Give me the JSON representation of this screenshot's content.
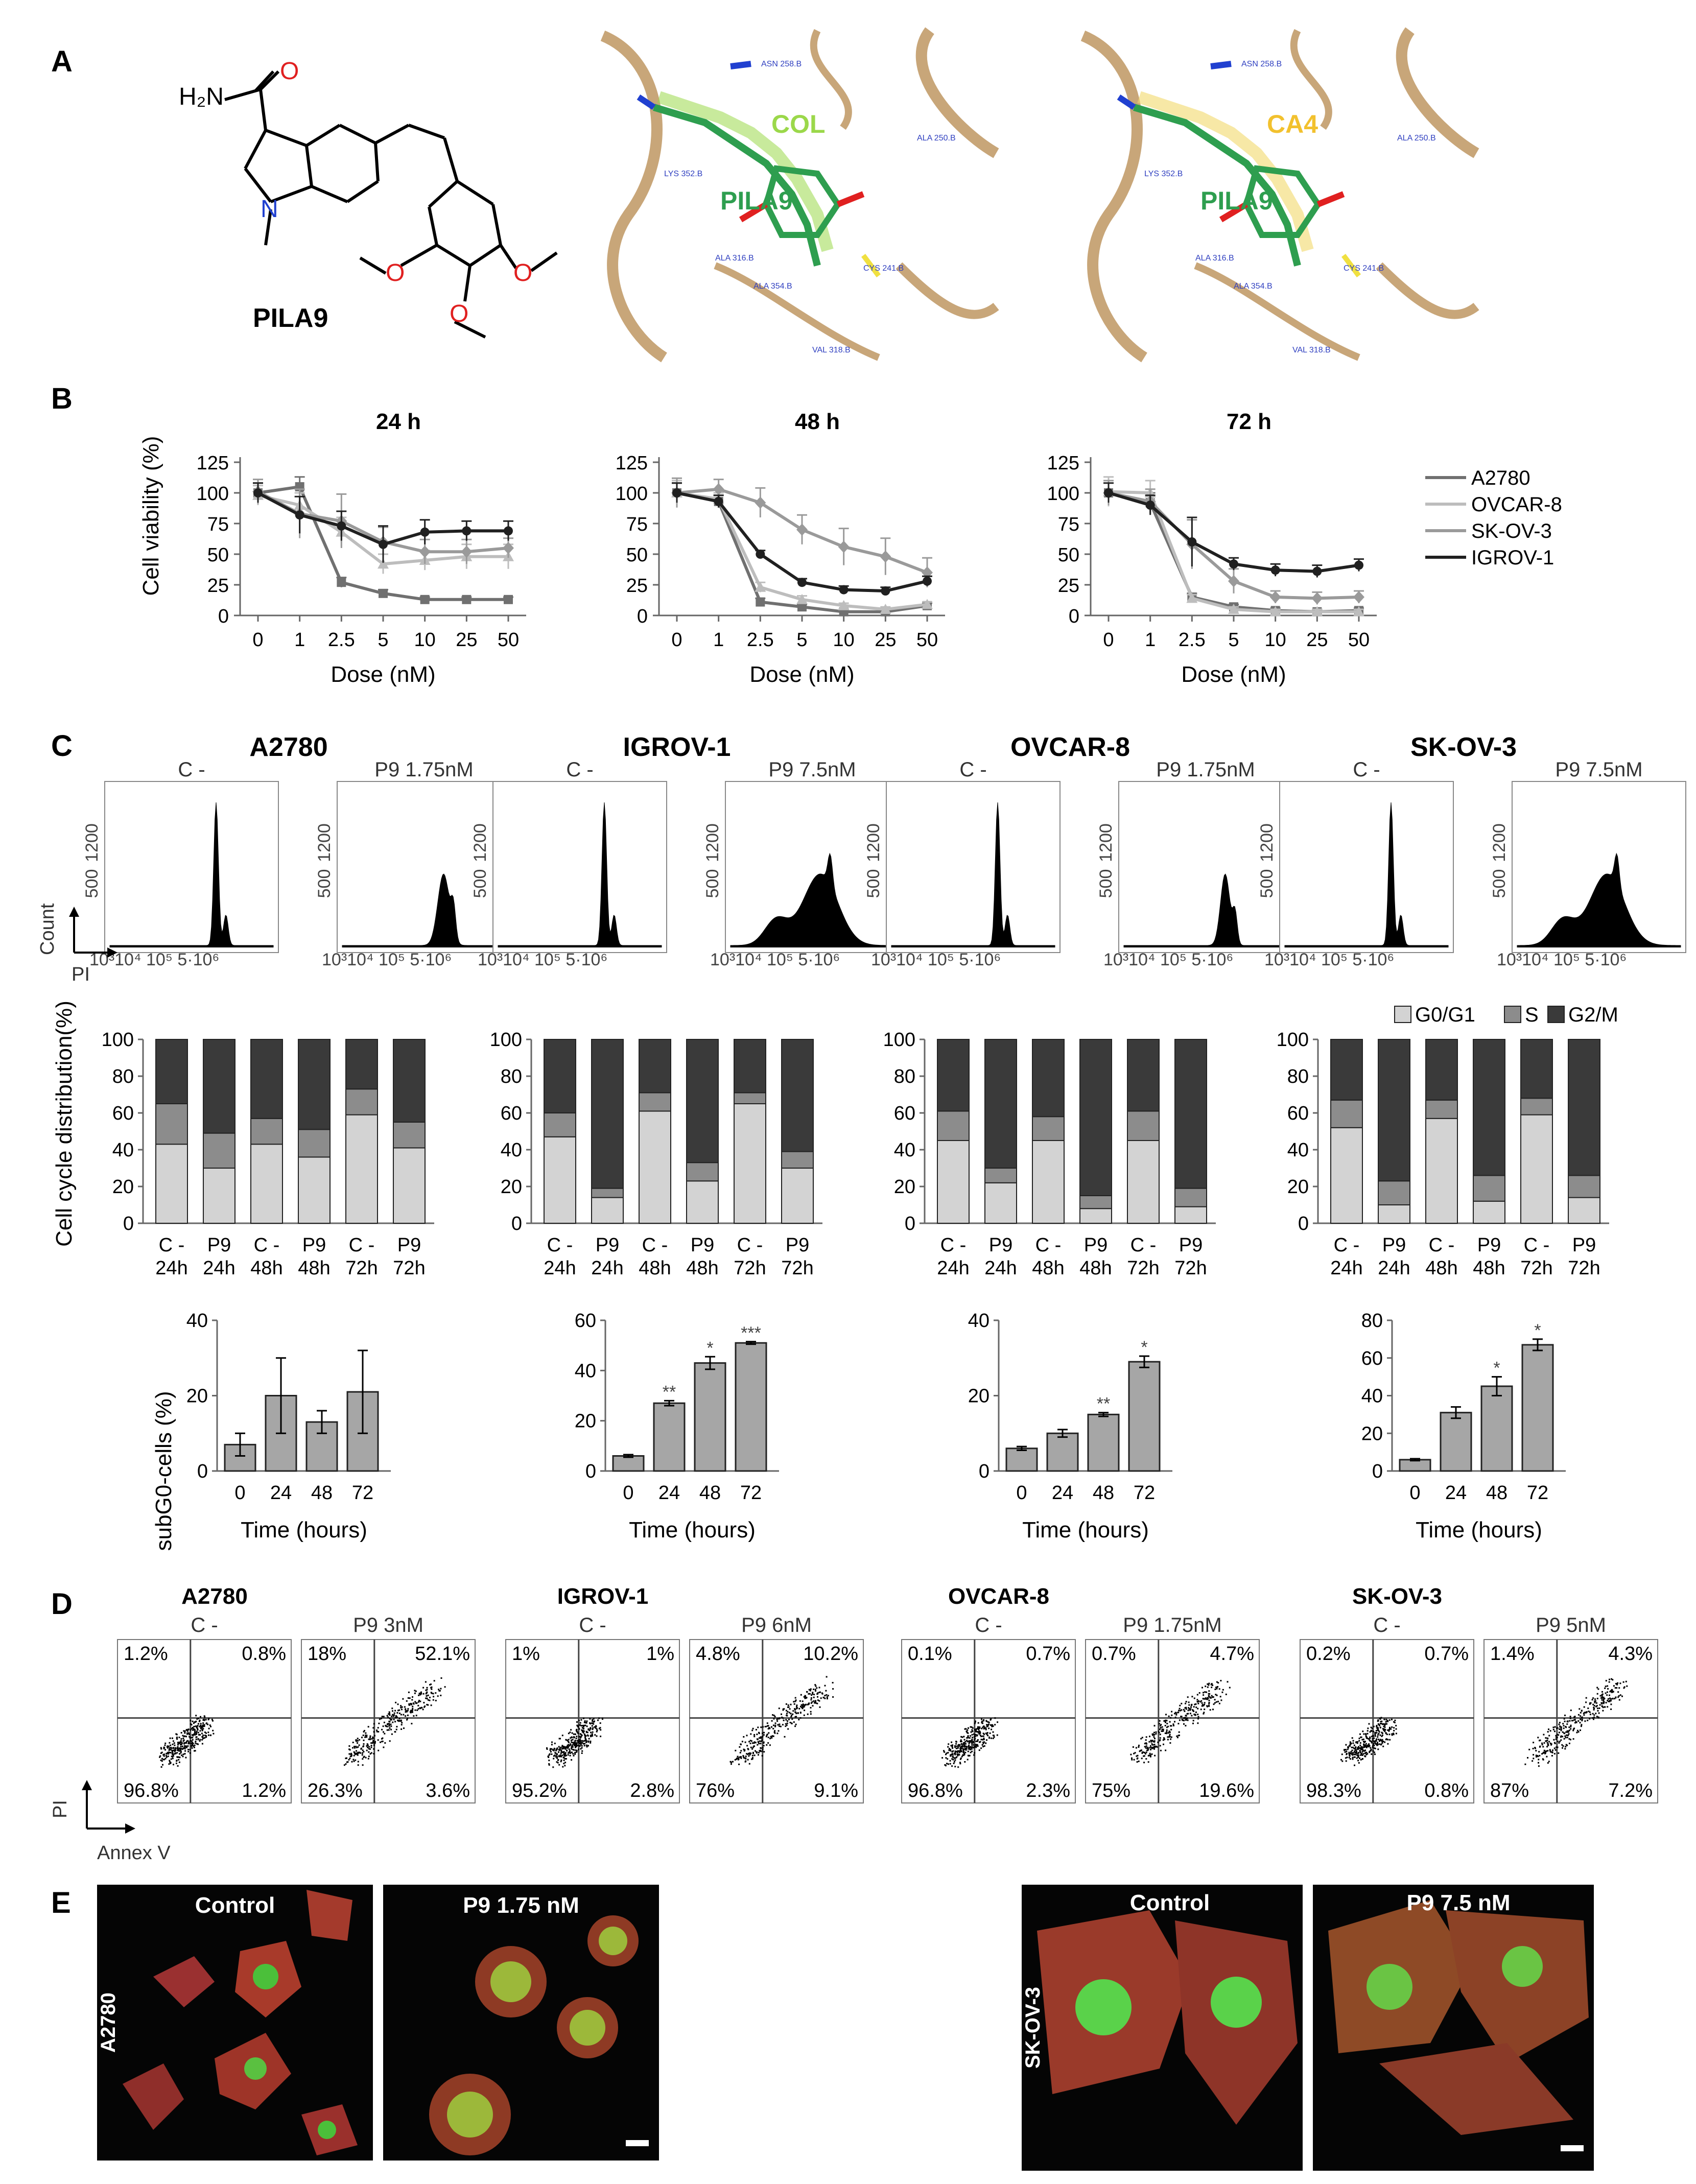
{
  "panel_letters": {
    "A": "A",
    "B": "B",
    "C": "C",
    "D": "D",
    "E": "E"
  },
  "panelA": {
    "compound": "PILA9",
    "atoms": {
      "h2n": "H₂N",
      "o": "O",
      "n": "N"
    },
    "overlay1": {
      "ref": "COL",
      "ligand": "PILA9"
    },
    "overlay2": {
      "ref": "CA4",
      "ligand": "PILA9"
    },
    "residues": [
      "ASN 258.B",
      "ALA 250.B",
      "LYS 352.B",
      "ALA 316.B",
      "ALA 354.B",
      "CYS 241.B",
      "VAL 318.B"
    ],
    "colors": {
      "ribbon": "#c8a679",
      "ligand": "#2e9e4f",
      "col_label": "#9bd84a",
      "ca4_label": "#f2c12e",
      "pila9_label": "#2e9e4f",
      "oxygen": "#e02020",
      "nitrogen": "#2040d0"
    }
  },
  "panelB": {
    "ylabel": "Cell viability (%)",
    "xlabel": "Dose (nM)",
    "yticks": [
      "0",
      "25",
      "50",
      "75",
      "100",
      "125"
    ],
    "xticks": [
      "0",
      "1",
      "2.5",
      "5",
      "10",
      "25",
      "50"
    ],
    "legend": [
      "A2780",
      "OVCAR-8",
      "SK-OV-3",
      "IGROV-1"
    ]
  },
  "chart_data": [
    {
      "type": "line",
      "title": "24 h",
      "xlabel": "Dose (nM)",
      "ylabel": "Cell viability (%)",
      "categories": [
        "0",
        "1",
        "2.5",
        "5",
        "10",
        "25",
        "50"
      ],
      "ylim": [
        0,
        125
      ],
      "series": [
        {
          "name": "A2780",
          "values": [
            100,
            105,
            27,
            18,
            13,
            13,
            13
          ],
          "err": [
            8,
            8,
            4,
            3,
            2,
            2,
            2
          ]
        },
        {
          "name": "OVCAR-8",
          "values": [
            98,
            90,
            68,
            42,
            45,
            48,
            48
          ],
          "err": [
            8,
            10,
            12,
            8,
            8,
            10,
            10
          ]
        },
        {
          "name": "SK-OV-3",
          "values": [
            101,
            83,
            77,
            60,
            52,
            52,
            55
          ],
          "err": [
            10,
            20,
            22,
            12,
            10,
            10,
            8
          ]
        },
        {
          "name": "IGROV-1",
          "values": [
            100,
            82,
            73,
            58,
            68,
            69,
            69
          ],
          "err": [
            8,
            15,
            12,
            15,
            10,
            8,
            8
          ]
        }
      ]
    },
    {
      "type": "line",
      "title": "48 h",
      "xlabel": "Dose (nM)",
      "ylabel": "Cell viability (%)",
      "categories": [
        "0",
        "1",
        "2.5",
        "5",
        "10",
        "25",
        "50"
      ],
      "ylim": [
        0,
        125
      ],
      "series": [
        {
          "name": "A2780",
          "values": [
            100,
            93,
            11,
            7,
            3,
            3,
            8
          ],
          "err": [
            8,
            5,
            3,
            2,
            2,
            2,
            2
          ]
        },
        {
          "name": "OVCAR-8",
          "values": [
            100,
            95,
            23,
            13,
            8,
            5,
            9
          ],
          "err": [
            10,
            5,
            4,
            3,
            2,
            2,
            2
          ]
        },
        {
          "name": "SK-OV-3",
          "values": [
            100,
            103,
            92,
            70,
            56,
            48,
            35
          ],
          "err": [
            12,
            8,
            12,
            12,
            15,
            15,
            12
          ]
        },
        {
          "name": "IGROV-1",
          "values": [
            100,
            93,
            50,
            27,
            21,
            20,
            28
          ],
          "err": [
            8,
            5,
            3,
            3,
            3,
            3,
            4
          ]
        }
      ]
    },
    {
      "type": "line",
      "title": "72 h",
      "xlabel": "Dose (nM)",
      "ylabel": "Cell viability (%)",
      "categories": [
        "0",
        "1",
        "2.5",
        "5",
        "10",
        "25",
        "50"
      ],
      "ylim": [
        0,
        125
      ],
      "series": [
        {
          "name": "A2780",
          "values": [
            100,
            92,
            15,
            7,
            4,
            3,
            4
          ],
          "err": [
            10,
            8,
            3,
            2,
            2,
            2,
            2
          ]
        },
        {
          "name": "OVCAR-8",
          "values": [
            101,
            100,
            14,
            5,
            3,
            3,
            3
          ],
          "err": [
            12,
            10,
            3,
            2,
            2,
            2,
            2
          ]
        },
        {
          "name": "SK-OV-3",
          "values": [
            100,
            93,
            58,
            28,
            15,
            14,
            15
          ],
          "err": [
            10,
            10,
            20,
            10,
            5,
            5,
            5
          ]
        },
        {
          "name": "IGROV-1",
          "values": [
            100,
            90,
            60,
            42,
            37,
            36,
            41
          ],
          "err": [
            8,
            8,
            20,
            5,
            5,
            5,
            5
          ]
        }
      ]
    },
    {
      "type": "bar",
      "stacked": true,
      "title": "A2780 cell cycle distribution",
      "ylabel": "Cell cycle distribution(%)",
      "categories": [
        "C-\n24h",
        "P9\n24h",
        "C-\n48h",
        "P9\n48h",
        "C-\n72h",
        "P9\n72h"
      ],
      "ylim": [
        0,
        100
      ],
      "series": [
        {
          "name": "G0/G1",
          "values": [
            43,
            30,
            43,
            36,
            59,
            41
          ]
        },
        {
          "name": "S",
          "values": [
            22,
            19,
            14,
            15,
            14,
            14
          ]
        },
        {
          "name": "G2/M",
          "values": [
            35,
            51,
            43,
            49,
            27,
            45
          ]
        }
      ]
    },
    {
      "type": "bar",
      "stacked": true,
      "title": "IGROV-1 cell cycle distribution",
      "ylabel": "Cell cycle distribution(%)",
      "categories": [
        "C-\n24h",
        "P9\n24h",
        "C-\n48h",
        "P9\n48h",
        "C-\n72h",
        "P9\n72h"
      ],
      "ylim": [
        0,
        100
      ],
      "series": [
        {
          "name": "G0/G1",
          "values": [
            47,
            14,
            61,
            23,
            65,
            30
          ]
        },
        {
          "name": "S",
          "values": [
            13,
            5,
            10,
            10,
            6,
            9
          ]
        },
        {
          "name": "G2/M",
          "values": [
            40,
            81,
            29,
            67,
            29,
            61
          ]
        }
      ]
    },
    {
      "type": "bar",
      "stacked": true,
      "title": "OVCAR-8 cell cycle distribution",
      "ylabel": "Cell cycle distribution(%)",
      "categories": [
        "C-\n24h",
        "P9\n24h",
        "C-\n48h",
        "P9\n48h",
        "C-\n72h",
        "P9\n72h"
      ],
      "ylim": [
        0,
        100
      ],
      "series": [
        {
          "name": "G0/G1",
          "values": [
            45,
            22,
            45,
            8,
            45,
            9
          ]
        },
        {
          "name": "S",
          "values": [
            16,
            8,
            13,
            7,
            16,
            10
          ]
        },
        {
          "name": "G2/M",
          "values": [
            39,
            70,
            42,
            85,
            39,
            81
          ]
        }
      ]
    },
    {
      "type": "bar",
      "stacked": true,
      "title": "SK-OV-3 cell cycle distribution",
      "ylabel": "Cell cycle distribution(%)",
      "categories": [
        "C-\n24h",
        "P9\n24h",
        "C-\n48h",
        "P9\n48h",
        "C-\n72h",
        "P9\n72h"
      ],
      "ylim": [
        0,
        100
      ],
      "series": [
        {
          "name": "G0/G1",
          "values": [
            52,
            10,
            57,
            12,
            59,
            14
          ]
        },
        {
          "name": "S",
          "values": [
            15,
            13,
            10,
            14,
            9,
            12
          ]
        },
        {
          "name": "G2/M",
          "values": [
            33,
            77,
            33,
            74,
            32,
            74
          ]
        }
      ]
    },
    {
      "type": "bar",
      "title": "A2780 subG0",
      "xlabel": "Time (hours)",
      "ylabel": "subG0-cells (%)",
      "categories": [
        "0",
        "24",
        "48",
        "72"
      ],
      "values": [
        7,
        20,
        13,
        21
      ],
      "err": [
        3,
        10,
        3,
        11
      ],
      "ylim": [
        0,
        40
      ],
      "sig": [
        "",
        "",
        "",
        ""
      ]
    },
    {
      "type": "bar",
      "title": "IGROV-1 subG0",
      "xlabel": "Time (hours)",
      "ylabel": "subG0-cells (%)",
      "categories": [
        "0",
        "24",
        "48",
        "72"
      ],
      "values": [
        6,
        27,
        43,
        51
      ],
      "err": [
        0.5,
        1,
        2.5,
        0.5
      ],
      "ylim": [
        0,
        60
      ],
      "sig": [
        "",
        "**",
        "*",
        "***"
      ]
    },
    {
      "type": "bar",
      "title": "OVCAR-8 subG0",
      "xlabel": "Time (hours)",
      "ylabel": "subG0-cells (%)",
      "categories": [
        "0",
        "24",
        "48",
        "72"
      ],
      "values": [
        6,
        10,
        15,
        29
      ],
      "err": [
        0.5,
        1,
        0.5,
        1.5
      ],
      "ylim": [
        0,
        40
      ],
      "sig": [
        "",
        "",
        "**",
        "*"
      ]
    },
    {
      "type": "bar",
      "title": "SK-OV-3 subG0",
      "xlabel": "Time (hours)",
      "ylabel": "subG0-cells (%)",
      "categories": [
        "0",
        "24",
        "48",
        "72"
      ],
      "values": [
        6,
        31,
        45,
        67
      ],
      "err": [
        0.5,
        3,
        5,
        3
      ],
      "ylim": [
        0,
        80
      ],
      "sig": [
        "",
        "",
        "*",
        "*"
      ]
    }
  ],
  "panelC": {
    "cells": [
      {
        "name": "A2780",
        "control": "C -",
        "treat": "P9 1.75nM"
      },
      {
        "name": "IGROV-1",
        "control": "C -",
        "treat": "P9 7.5nM"
      },
      {
        "name": "OVCAR-8",
        "control": "C -",
        "treat": "P9 1.75nM"
      },
      {
        "name": "SK-OV-3",
        "control": "C -",
        "treat": "P9 7.5nM"
      }
    ],
    "hist_yticks": [
      "500",
      "1200"
    ],
    "hist_xticks": "10³10⁴ 10⁵    5·10⁶",
    "hist_axis": {
      "y": "Count",
      "x": "PI"
    },
    "cc_legend": [
      "G0/G1",
      "S",
      "G2/M"
    ],
    "cc_ylabel": "Cell cycle distribution(%)",
    "cc_yticks": [
      "0",
      "20",
      "40",
      "60",
      "80",
      "100"
    ],
    "cc_xtop": [
      "C -",
      "P9",
      "C -",
      "P9",
      "C -",
      "P9"
    ],
    "cc_xbot": [
      "24h",
      "24h",
      "48h",
      "48h",
      "72h",
      "72h"
    ],
    "sub_ylabel": "subG0-cells (%)",
    "sub_xlabel": "Time (hours)",
    "sub_yticks": [
      [
        "0",
        "20",
        "40"
      ],
      [
        "0",
        "20",
        "40",
        "60"
      ],
      [
        "0",
        "20",
        "40"
      ],
      [
        "0",
        "20",
        "40",
        "60",
        "80"
      ]
    ],
    "colors": {
      "g0g1": "#d3d3d3",
      "s": "#8c8c8c",
      "g2m": "#3a3a3a",
      "sub": "#a6a6a6"
    }
  },
  "panelD": {
    "cells": [
      {
        "name": "A2780",
        "control": "C -",
        "treat": "P9 3nM",
        "c_q": [
          "1.2%",
          "0.8%",
          "96.8%",
          "1.2%"
        ],
        "t_q": [
          "18%",
          "52.1%",
          "26.3%",
          "3.6%"
        ]
      },
      {
        "name": "IGROV-1",
        "control": "C -",
        "treat": "P9 6nM",
        "c_q": [
          "1%",
          "1%",
          "95.2%",
          "2.8%"
        ],
        "t_q": [
          "4.8%",
          "10.2%",
          "76%",
          "9.1%"
        ]
      },
      {
        "name": "OVCAR-8",
        "control": "C -",
        "treat": "P9 1.75nM",
        "c_q": [
          "0.1%",
          "0.7%",
          "96.8%",
          "2.3%"
        ],
        "t_q": [
          "0.7%",
          "4.7%",
          "75%",
          "19.6%"
        ]
      },
      {
        "name": "SK-OV-3",
        "control": "C -",
        "treat": "P9 5nM",
        "c_q": [
          "0.2%",
          "0.7%",
          "98.3%",
          "0.8%"
        ],
        "t_q": [
          "1.4%",
          "4.3%",
          "87%",
          "7.2%"
        ]
      }
    ],
    "axis": {
      "y": "PI",
      "x": "Annex V"
    }
  },
  "panelE": {
    "left": {
      "cell": "A2780",
      "control": "Control",
      "treat": "P9 1.75 nM"
    },
    "right": {
      "cell": "SK-OV-3",
      "control": "Control",
      "treat": "P9 7.5 nM"
    }
  }
}
